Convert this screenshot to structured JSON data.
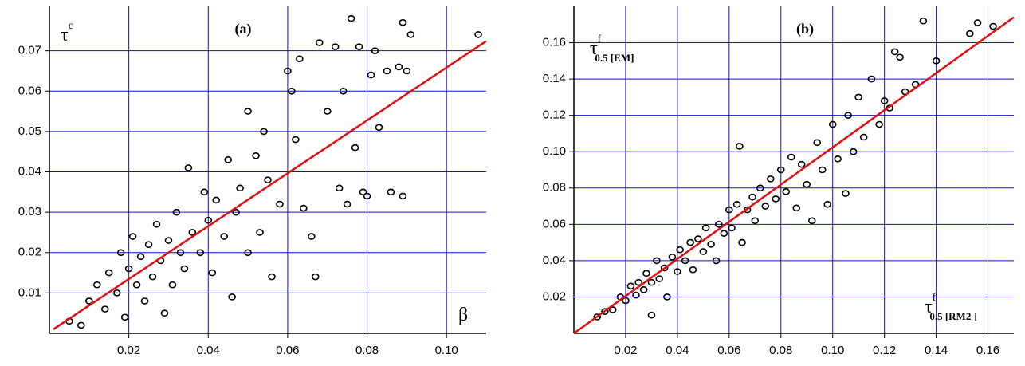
{
  "chart_data": [
    {
      "type": "scatter",
      "panel_label": "(a)",
      "x_label": {
        "text": "β"
      },
      "y_label": {
        "text": "τ",
        "sup": "c"
      },
      "xlim": [
        0,
        0.11
      ],
      "ylim": [
        0,
        0.081
      ],
      "xticks": [
        0.02,
        0.04,
        0.06,
        0.08,
        {
          "value": 0.1,
          "label": "0.10"
        }
      ],
      "yticks": [
        0.01,
        0.02,
        0.03,
        0.04,
        0.05,
        0.06,
        0.07
      ],
      "grid": true,
      "grid_color": "#1010c0",
      "color": "#000000",
      "x": [
        0.005,
        0.008,
        0.01,
        0.012,
        0.014,
        0.015,
        0.017,
        0.018,
        0.019,
        0.02,
        0.021,
        0.022,
        0.023,
        0.024,
        0.025,
        0.026,
        0.027,
        0.028,
        0.029,
        0.03,
        0.031,
        0.032,
        0.033,
        0.034,
        0.035,
        0.036,
        0.038,
        0.039,
        0.04,
        0.041,
        0.042,
        0.044,
        0.045,
        0.046,
        0.047,
        0.048,
        0.05,
        0.05,
        0.052,
        0.053,
        0.054,
        0.055,
        0.056,
        0.058,
        0.06,
        0.061,
        0.062,
        0.063,
        0.064,
        0.066,
        0.067,
        0.068,
        0.07,
        0.072,
        0.073,
        0.074,
        0.075,
        0.076,
        0.077,
        0.078,
        0.079,
        0.08,
        0.081,
        0.082,
        0.083,
        0.085,
        0.086,
        0.088,
        0.089,
        0.089,
        0.09,
        0.091,
        0.108
      ],
      "values": [
        0.003,
        0.002,
        0.008,
        0.012,
        0.006,
        0.015,
        0.01,
        0.02,
        0.004,
        0.016,
        0.024,
        0.012,
        0.019,
        0.008,
        0.022,
        0.014,
        0.027,
        0.018,
        0.005,
        0.023,
        0.012,
        0.03,
        0.02,
        0.016,
        0.041,
        0.025,
        0.02,
        0.035,
        0.028,
        0.015,
        0.033,
        0.024,
        0.043,
        0.009,
        0.03,
        0.036,
        0.055,
        0.02,
        0.044,
        0.025,
        0.05,
        0.038,
        0.014,
        0.032,
        0.065,
        0.06,
        0.048,
        0.068,
        0.031,
        0.024,
        0.014,
        0.072,
        0.055,
        0.071,
        0.036,
        0.06,
        0.032,
        0.078,
        0.046,
        0.071,
        0.035,
        0.034,
        0.064,
        0.07,
        0.051,
        0.065,
        0.035,
        0.066,
        0.077,
        0.034,
        0.065,
        0.074,
        0.074
      ],
      "fit": {
        "color": "#e01010",
        "x": [
          0.001,
          0.11
        ],
        "values": [
          0.001,
          0.0724
        ]
      }
    },
    {
      "type": "scatter",
      "panel_label": "(b)",
      "x_label": {
        "text": "τ",
        "sup": "f",
        "sub": "0.5 [RM2 ]"
      },
      "y_label": {
        "text": "τ",
        "sup": "f",
        "sub": "0.5 [EM]"
      },
      "xlim": [
        0,
        0.17
      ],
      "ylim": [
        0,
        0.18
      ],
      "xticks": [
        0.02,
        0.04,
        0.06,
        0.08,
        {
          "value": 0.1,
          "label": "0.10"
        },
        0.12,
        0.14,
        0.16
      ],
      "yticks": [
        0.02,
        0.04,
        0.06,
        0.08,
        {
          "value": 0.1,
          "label": "0.10"
        },
        0.12,
        0.14,
        0.16
      ],
      "grid": true,
      "grid_color": "#1010c0",
      "color": "#000000",
      "x": [
        0.009,
        0.012,
        0.015,
        0.018,
        0.02,
        0.022,
        0.024,
        0.025,
        0.027,
        0.028,
        0.03,
        0.03,
        0.032,
        0.033,
        0.035,
        0.036,
        0.038,
        0.04,
        0.041,
        0.043,
        0.045,
        0.046,
        0.048,
        0.05,
        0.051,
        0.053,
        0.055,
        0.056,
        0.058,
        0.06,
        0.061,
        0.063,
        0.064,
        0.065,
        0.067,
        0.069,
        0.07,
        0.072,
        0.074,
        0.076,
        0.078,
        0.08,
        0.082,
        0.084,
        0.086,
        0.088,
        0.09,
        0.092,
        0.094,
        0.096,
        0.098,
        0.1,
        0.102,
        0.105,
        0.106,
        0.108,
        0.11,
        0.112,
        0.115,
        0.118,
        0.12,
        0.122,
        0.124,
        0.126,
        0.128,
        0.132,
        0.135,
        0.14,
        0.153,
        0.156,
        0.162
      ],
      "values": [
        0.009,
        0.012,
        0.013,
        0.02,
        0.018,
        0.026,
        0.021,
        0.028,
        0.024,
        0.033,
        0.01,
        0.028,
        0.04,
        0.03,
        0.036,
        0.02,
        0.042,
        0.034,
        0.046,
        0.04,
        0.05,
        0.035,
        0.052,
        0.045,
        0.058,
        0.049,
        0.04,
        0.06,
        0.055,
        0.068,
        0.058,
        0.071,
        0.103,
        0.05,
        0.068,
        0.075,
        0.062,
        0.08,
        0.07,
        0.085,
        0.074,
        0.09,
        0.078,
        0.097,
        0.069,
        0.093,
        0.082,
        0.062,
        0.105,
        0.09,
        0.071,
        0.115,
        0.096,
        0.077,
        0.12,
        0.1,
        0.13,
        0.108,
        0.14,
        0.115,
        0.128,
        0.124,
        0.155,
        0.152,
        0.133,
        0.137,
        0.172,
        0.15,
        0.165,
        0.171,
        0.169
      ],
      "fit": {
        "color": "#e01010",
        "x": [
          0,
          0.17
        ],
        "values": [
          0,
          0.174
        ]
      }
    }
  ]
}
